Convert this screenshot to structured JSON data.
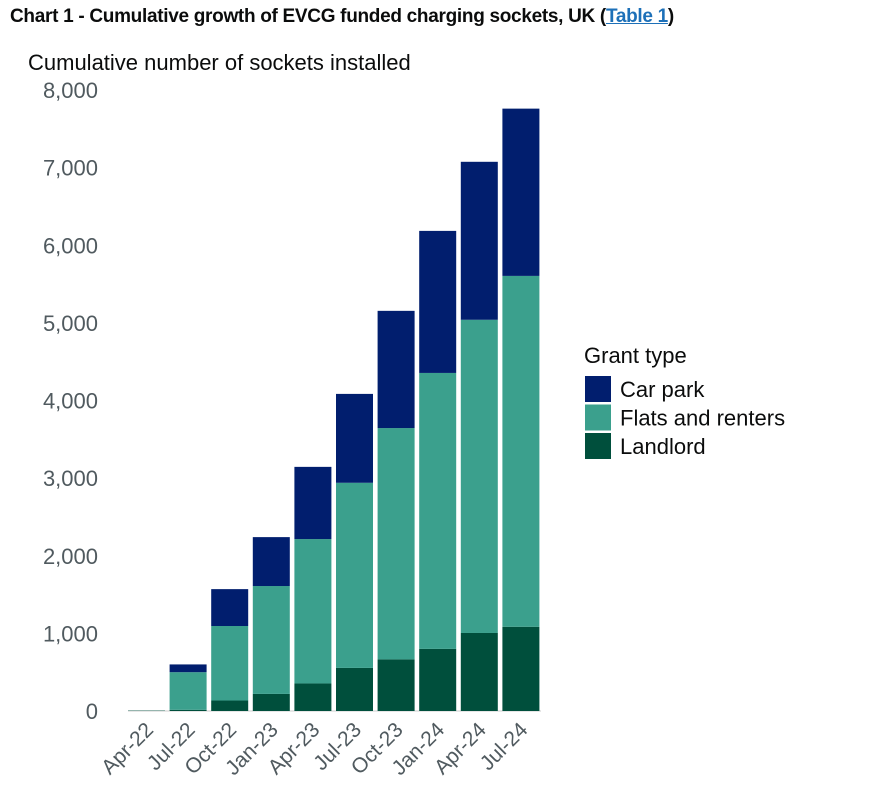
{
  "title": {
    "text": "Chart 1 - Cumulative growth of EVCG funded charging sockets, UK (",
    "link": "Table 1",
    "close": ")"
  },
  "chart_data": {
    "type": "bar",
    "stacked": true,
    "ylabel": "Cumulative number of sockets installed",
    "xlabel": "",
    "ylim": [
      0,
      8000
    ],
    "yticks": [
      0,
      1000,
      2000,
      3000,
      4000,
      5000,
      6000,
      7000,
      8000
    ],
    "ytick_labels": [
      "0",
      "1,000",
      "2,000",
      "3,000",
      "4,000",
      "5,000",
      "6,000",
      "7,000",
      "8,000"
    ],
    "categories": [
      "Apr-22",
      "Jul-22",
      "Oct-22",
      "Jan-23",
      "Apr-23",
      "Jul-23",
      "Oct-23",
      "Jan-24",
      "Apr-24",
      "Jul-24"
    ],
    "grid": false,
    "legend": {
      "title": "Grant type",
      "position": "right"
    },
    "series": [
      {
        "name": "Landlord",
        "color": "#004f3c",
        "values": [
          5,
          15,
          135,
          220,
          355,
          555,
          665,
          800,
          1005,
          1085
        ]
      },
      {
        "name": "Flats and renters",
        "color": "#3ba08d",
        "values": [
          0,
          485,
          960,
          1390,
          1860,
          2385,
          2980,
          3555,
          4035,
          4520
        ]
      },
      {
        "name": "Car park",
        "color": "#011e6e",
        "values": [
          0,
          100,
          475,
          630,
          930,
          1145,
          1510,
          1830,
          2035,
          2155
        ]
      }
    ],
    "legend_order": [
      "Car park",
      "Flats and renters",
      "Landlord"
    ]
  }
}
